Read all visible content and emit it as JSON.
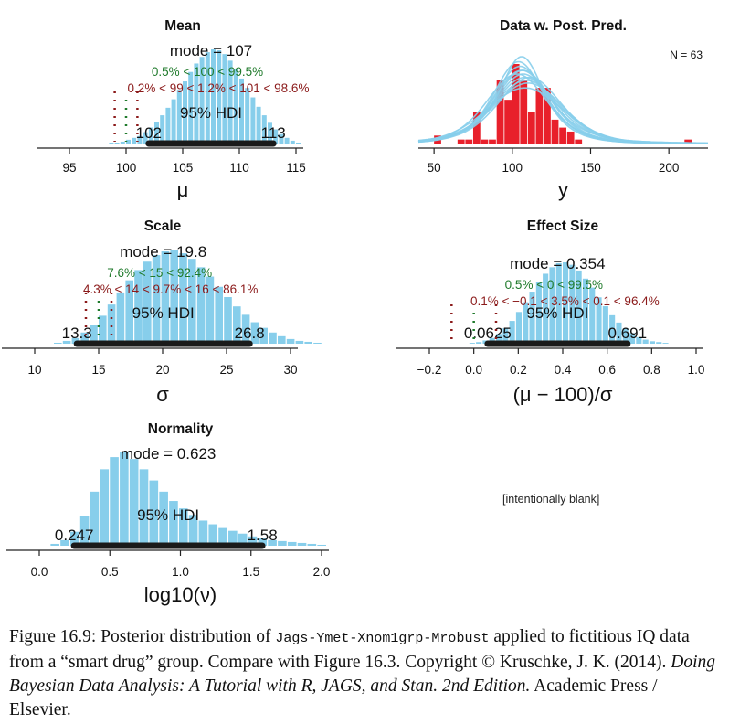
{
  "panels": [
    {
      "id": "mean",
      "kind": "hist",
      "title": "Mean",
      "xlabel": "μ",
      "xlim": [
        95,
        115
      ],
      "ticks": [
        95,
        100,
        105,
        110,
        115
      ],
      "tick_labels": [
        "95",
        "100",
        "105",
        "110",
        "115"
      ],
      "mode_text": "mode = 107",
      "green_text": "0.5% < 100 < 99.5%",
      "red_text": "0.2% < 99 < 1.2% < 101 < 98.6%",
      "hdi_text": "95% HDI",
      "hdi": [
        102,
        113
      ],
      "hdi_low_label": "102",
      "hdi_high_label": "113",
      "comp_value": 100,
      "rope": [
        99,
        101
      ],
      "bins": {
        "start": 98.5,
        "width": 0.5,
        "heights": [
          0.01,
          0.01,
          0.02,
          0.04,
          0.06,
          0.08,
          0.12,
          0.17,
          0.23,
          0.3,
          0.38,
          0.47,
          0.57,
          0.66,
          0.76,
          0.85,
          0.92,
          0.97,
          1.0,
          0.99,
          0.95,
          0.88,
          0.79,
          0.69,
          0.59,
          0.49,
          0.39,
          0.3,
          0.22,
          0.15,
          0.1,
          0.06,
          0.03,
          0.01
        ]
      }
    },
    {
      "id": "ppc",
      "kind": "ppc",
      "title": "Data w. Post. Pred.",
      "xlabel": "y",
      "xlim": [
        40,
        225
      ],
      "ticks": [
        50,
        100,
        150,
        200
      ],
      "tick_labels": [
        "50",
        "100",
        "150",
        "200"
      ],
      "n_text": "N = 63",
      "data_bins": {
        "start": 45,
        "width": 5,
        "heights": [
          0,
          0.1,
          0,
          0,
          0.05,
          0.05,
          0.4,
          0.05,
          0.05,
          0.8,
          0.55,
          1.0,
          0.8,
          0.4,
          0.7,
          0.7,
          0.3,
          0.2,
          0.15,
          0.05,
          0,
          0,
          0,
          0,
          0,
          0,
          0,
          0,
          0,
          0,
          0,
          0,
          0,
          0.05,
          0
        ]
      },
      "curves": [
        {
          "mu": 104,
          "sigma": 17,
          "nu": 4
        },
        {
          "mu": 106,
          "sigma": 19,
          "nu": 6
        },
        {
          "mu": 108,
          "sigma": 21,
          "nu": 5
        },
        {
          "mu": 107,
          "sigma": 20,
          "nu": 3
        },
        {
          "mu": 109,
          "sigma": 22,
          "nu": 8
        },
        {
          "mu": 105,
          "sigma": 18,
          "nu": 4
        },
        {
          "mu": 110,
          "sigma": 23,
          "nu": 10
        },
        {
          "mu": 106,
          "sigma": 16,
          "nu": 2
        },
        {
          "mu": 108,
          "sigma": 25,
          "nu": 12
        },
        {
          "mu": 107,
          "sigma": 19,
          "nu": 5
        },
        {
          "mu": 103,
          "sigma": 20,
          "nu": 7
        },
        {
          "mu": 111,
          "sigma": 21,
          "nu": 6
        }
      ]
    },
    {
      "id": "scale",
      "kind": "hist",
      "title": "Scale",
      "xlabel": "σ",
      "xlim": [
        10,
        30
      ],
      "ticks": [
        10,
        15,
        20,
        25,
        30
      ],
      "tick_labels": [
        "10",
        "15",
        "20",
        "25",
        "30"
      ],
      "mode_text": "mode = 19.8",
      "green_text": "7.6% < 15 < 92.4%",
      "red_text": "4.3% < 14 < 9.7% < 16 < 86.1%",
      "hdi_text": "95% HDI",
      "hdi": [
        13.3,
        26.8
      ],
      "hdi_low_label": "13.3",
      "hdi_high_label": "26.8",
      "comp_value": 15,
      "rope": [
        14,
        16
      ],
      "bins": {
        "start": 11.5,
        "width": 0.7,
        "heights": [
          0.01,
          0.03,
          0.06,
          0.12,
          0.2,
          0.3,
          0.42,
          0.55,
          0.68,
          0.79,
          0.88,
          0.95,
          0.99,
          1.0,
          0.97,
          0.91,
          0.82,
          0.72,
          0.61,
          0.5,
          0.4,
          0.31,
          0.23,
          0.17,
          0.12,
          0.08,
          0.05,
          0.03,
          0.02,
          0.01
        ]
      }
    },
    {
      "id": "effect",
      "kind": "hist",
      "title": "Effect Size",
      "xlabel": "(μ − 100)/σ",
      "xlim": [
        -0.2,
        1.0
      ],
      "ticks": [
        -0.2,
        0.0,
        0.2,
        0.4,
        0.6,
        0.8,
        1.0
      ],
      "tick_labels": [
        "−0.2",
        "0.0",
        "0.2",
        "0.4",
        "0.6",
        "0.8",
        "1.0"
      ],
      "mode_text": "mode = 0.354",
      "green_text": "0.5% < 0 < 99.5%",
      "red_text": "0.1% < −0.1 < 3.5% < 0.1 < 96.4%",
      "hdi_text": "95% HDI",
      "hdi": [
        0.0625,
        0.691
      ],
      "hdi_low_label": "0.0625",
      "hdi_high_label": "0.691",
      "comp_value": 0,
      "rope": [
        -0.1,
        0.1
      ],
      "bins": {
        "start": -0.02,
        "width": 0.03,
        "heights": [
          0.01,
          0.02,
          0.04,
          0.07,
          0.12,
          0.19,
          0.28,
          0.39,
          0.51,
          0.64,
          0.76,
          0.86,
          0.94,
          0.99,
          1.0,
          0.97,
          0.9,
          0.8,
          0.69,
          0.57,
          0.46,
          0.35,
          0.26,
          0.19,
          0.13,
          0.08,
          0.05,
          0.03,
          0.02,
          0.01
        ]
      }
    },
    {
      "id": "normality",
      "kind": "hist",
      "title": "Normality",
      "xlabel": "log10(ν)",
      "xlim": [
        0.0,
        2.0
      ],
      "ticks": [
        0.0,
        0.5,
        1.0,
        1.5,
        2.0
      ],
      "tick_labels": [
        "0.0",
        "0.5",
        "1.0",
        "1.5",
        "2.0"
      ],
      "mode_text": "mode = 0.623",
      "hdi_text": "95% HDI",
      "hdi": [
        0.247,
        1.58
      ],
      "hdi_low_label": "0.247",
      "hdi_high_label": "1.58",
      "bins": {
        "start": 0.08,
        "width": 0.07,
        "heights": [
          0.02,
          0.06,
          0.15,
          0.32,
          0.58,
          0.82,
          0.95,
          1.0,
          0.93,
          0.82,
          0.7,
          0.58,
          0.48,
          0.4,
          0.33,
          0.27,
          0.23,
          0.19,
          0.16,
          0.13,
          0.1,
          0.08,
          0.06,
          0.05,
          0.04,
          0.03,
          0.02,
          0.01
        ]
      }
    }
  ],
  "blank_text": "[intentionally blank]",
  "caption": {
    "prefix": "Figure 16.9: Posterior distribution of ",
    "code": "Jags-Ymet-Xnom1grp-Mrobust",
    "rest": " applied to fictitious IQ data from a “smart drug” group.  Compare with Figure 16.3.    Copyright © Kruschke, J. K. (2014). ",
    "book": "Doing Bayesian Data Analysis: A Tutorial with R, JAGS, and Stan. 2nd Edition.",
    "publisher": " Academic Press / Elsevier."
  },
  "colors": {
    "bar": "#87ceeb",
    "data_bar": "#e8202b",
    "hdi": "#1a1a1a",
    "green": "#1f7a2b",
    "red": "#8b1a1a",
    "curve": "#87ceeb"
  }
}
